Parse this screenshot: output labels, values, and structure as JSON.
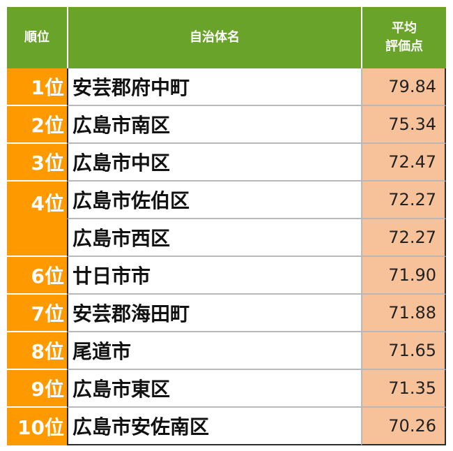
{
  "header": {
    "rank": "順位",
    "name": "自治体名",
    "score_line1": "平均",
    "score_line2": "評価点"
  },
  "rows": [
    {
      "rank": "1位",
      "name": "安芸郡府中町",
      "score": "79.84"
    },
    {
      "rank": "2位",
      "name": "広島市南区",
      "score": "75.34"
    },
    {
      "rank": "3位",
      "name": "広島市中区",
      "score": "72.47"
    },
    {
      "rank": "4位",
      "name": "広島市佐伯区",
      "score": "72.27"
    },
    {
      "rank": "",
      "name": "広島市西区",
      "score": "72.27"
    },
    {
      "rank": "6位",
      "name": "廿日市市",
      "score": "71.90"
    },
    {
      "rank": "7位",
      "name": "安芸郡海田町",
      "score": "71.88"
    },
    {
      "rank": "8位",
      "name": "尾道市",
      "score": "71.65"
    },
    {
      "rank": "9位",
      "name": "広島市東区",
      "score": "71.35"
    },
    {
      "rank": "10位",
      "name": "広島市安佐南区",
      "score": "70.26"
    }
  ],
  "colors": {
    "header_bg": "#6aa329",
    "rank_bg": "#ff9900",
    "score_bg": "#f7c19a"
  }
}
